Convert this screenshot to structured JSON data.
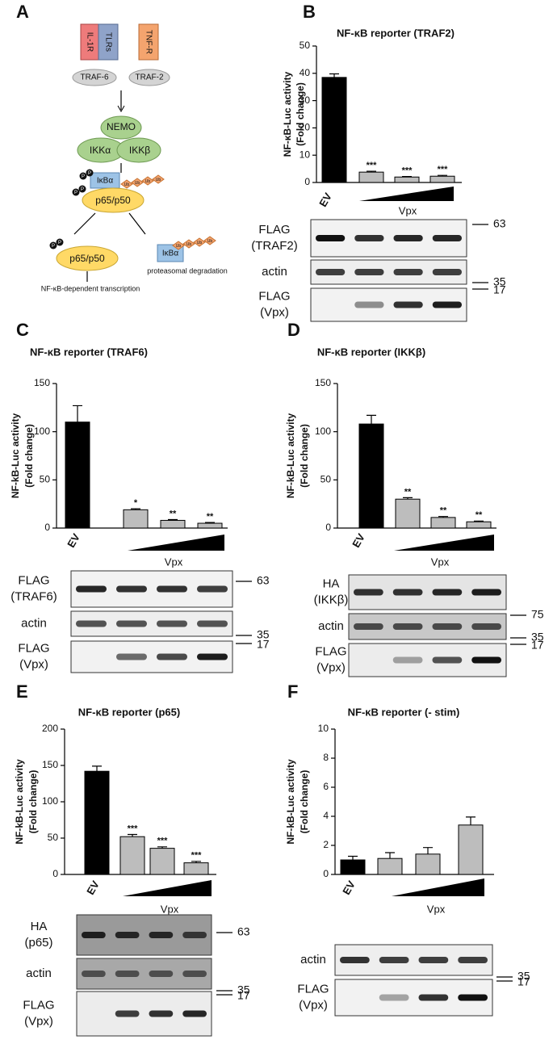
{
  "diagram": {
    "panel": "A",
    "receptors": [
      "IL-1R",
      "TLRs",
      "TNF-R"
    ],
    "adaptors": [
      "TRAF-6",
      "TRAF-2"
    ],
    "ikk": [
      "NEMO",
      "IKKα",
      "IKKβ"
    ],
    "inhibitor": "IκBα",
    "dimer": "p65/p50",
    "phospho": "P",
    "ubiquitin": "Ub",
    "degradation": "proteasomal degradation",
    "transcription": "NF-κB-dependent transcription"
  },
  "chart_data": [
    {
      "type": "bar",
      "panel": "B",
      "title": "NF-κB reporter (TRAF2)",
      "ylabel": [
        "NF-κB-Luc activity",
        "(Fold change)"
      ],
      "categories": [
        "EV",
        null,
        null,
        null
      ],
      "group_label": "Vpx",
      "values": [
        38.5,
        3.8,
        2.0,
        2.3
      ],
      "errors": [
        1.3,
        0.3,
        0.2,
        0.3
      ],
      "annotations": [
        null,
        "***",
        "***",
        "***"
      ],
      "colors": [
        "#000000",
        "#bdbdbd",
        "#bdbdbd",
        "#bdbdbd"
      ],
      "ylim": [
        0,
        50
      ],
      "yticks": [
        0,
        10,
        20,
        30,
        40,
        50
      ]
    },
    {
      "type": "bar",
      "panel": "C",
      "title": "NF-κB reporter (TRAF6)",
      "ylabel": [
        "NF-kB-Luc activity",
        "(Fold change)"
      ],
      "categories": [
        "EV",
        null,
        null,
        null
      ],
      "group_label": "Vpx",
      "values": [
        110,
        19,
        8,
        5
      ],
      "errors": [
        17,
        1,
        0.8,
        0.8
      ],
      "annotations": [
        null,
        "*",
        "**",
        "**"
      ],
      "colors": [
        "#000000",
        "#bdbdbd",
        "#bdbdbd",
        "#bdbdbd"
      ],
      "ylim": [
        0,
        150
      ],
      "yticks": [
        0,
        50,
        100,
        150
      ]
    },
    {
      "type": "bar",
      "panel": "D",
      "title": "NF-κB reporter (IKKβ)",
      "ylabel": [
        "NF-kB-Luc activity",
        "(Fold change)"
      ],
      "categories": [
        "EV",
        null,
        null,
        null
      ],
      "group_label": "Vpx",
      "values": [
        108,
        30,
        11,
        6.5
      ],
      "errors": [
        9,
        1.5,
        1,
        0.8
      ],
      "annotations": [
        null,
        "**",
        "**",
        "**"
      ],
      "colors": [
        "#000000",
        "#bdbdbd",
        "#bdbdbd",
        "#bdbdbd"
      ],
      "ylim": [
        0,
        150
      ],
      "yticks": [
        0,
        50,
        100,
        150
      ]
    },
    {
      "type": "bar",
      "panel": "E",
      "title": "NF-κB reporter (p65)",
      "ylabel": [
        "NF-kB-Luc activity",
        "(Fold change)"
      ],
      "categories": [
        "EV",
        null,
        null,
        null
      ],
      "group_label": "Vpx",
      "values": [
        142,
        52,
        36,
        16
      ],
      "errors": [
        7,
        3,
        2,
        2
      ],
      "annotations": [
        null,
        "***",
        "***",
        "***"
      ],
      "colors": [
        "#000000",
        "#bdbdbd",
        "#bdbdbd",
        "#bdbdbd"
      ],
      "ylim": [
        0,
        200
      ],
      "yticks": [
        0,
        50,
        100,
        150,
        200
      ]
    },
    {
      "type": "bar",
      "panel": "F",
      "title": "NF-κB reporter (- stim)",
      "ylabel": [
        "NF-kB-Luc activity",
        "(Fold change)"
      ],
      "categories": [
        "EV",
        null,
        null,
        null
      ],
      "group_label": "Vpx",
      "values": [
        1.0,
        1.1,
        1.4,
        3.4
      ],
      "errors": [
        0.25,
        0.4,
        0.45,
        0.55
      ],
      "annotations": [
        null,
        null,
        null,
        null
      ],
      "colors": [
        "#000000",
        "#bdbdbd",
        "#bdbdbd",
        "#bdbdbd"
      ],
      "ylim": [
        0,
        10
      ],
      "yticks": [
        0,
        2,
        4,
        6,
        8,
        10
      ]
    }
  ],
  "blots": [
    {
      "rows": [
        [
          "FLAG",
          "(TRAF2)"
        ],
        [
          "actin"
        ],
        [
          "FLAG",
          "(Vpx)"
        ]
      ],
      "markers": [
        63,
        35,
        17
      ]
    },
    {
      "rows": [
        [
          "FLAG",
          "(TRAF6)"
        ],
        [
          "actin"
        ],
        [
          "FLAG",
          "(Vpx)"
        ]
      ],
      "markers": [
        63,
        35,
        17
      ]
    },
    {
      "rows": [
        [
          "HA",
          "(IKKβ)"
        ],
        [
          "actin"
        ],
        [
          "FLAG",
          "(Vpx)"
        ]
      ],
      "markers": [
        75,
        35,
        17
      ]
    },
    {
      "rows": [
        [
          "HA",
          "(p65)"
        ],
        [
          "actin"
        ],
        [
          "FLAG",
          "(Vpx)"
        ]
      ],
      "markers": [
        63,
        35,
        17
      ]
    },
    {
      "rows": [
        [
          "actin"
        ],
        [
          "FLAG",
          "(Vpx)"
        ]
      ],
      "markers": [
        35,
        17
      ]
    }
  ]
}
